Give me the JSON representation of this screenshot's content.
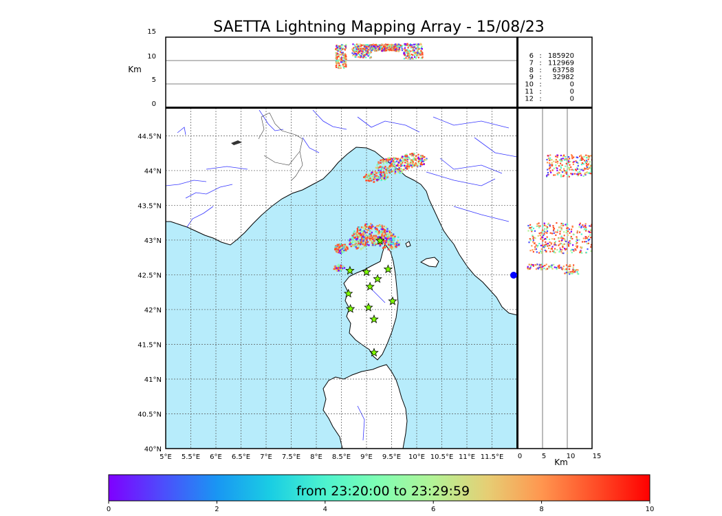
{
  "title": "SAETTA Lightning Mapping Array - 15/08/23",
  "top_panel": {
    "ylabel": "Km",
    "yticks": [
      "0",
      "5",
      "10",
      "15"
    ]
  },
  "side_panel": {
    "xlabel": "Km",
    "xticks": [
      "0",
      "5",
      "10",
      "15"
    ]
  },
  "map": {
    "lat_labels": [
      "40°N",
      "40.5°N",
      "41°N",
      "41.5°N",
      "42°N",
      "42.5°N",
      "43°N",
      "43.5°N",
      "44°N",
      "44.5°N"
    ],
    "lon_labels": [
      "5°E",
      "5.5°E",
      "6°E",
      "6.5°E",
      "7°E",
      "7.5°E",
      "8°E",
      "8.5°E",
      "9°E",
      "9.5°E",
      "10°E",
      "10.5°E",
      "11°E",
      "11.5°E"
    ],
    "sea_color": "#b7ecfb",
    "land_color": "#ffffff",
    "river_color": "#3333ff",
    "station_color": "#7fff00",
    "stations": [
      {
        "lon": 9.27,
        "lat": 42.99
      },
      {
        "lon": 8.67,
        "lat": 42.56
      },
      {
        "lon": 9.0,
        "lat": 42.54
      },
      {
        "lon": 9.43,
        "lat": 42.58
      },
      {
        "lon": 9.22,
        "lat": 42.44
      },
      {
        "lon": 9.07,
        "lat": 42.33
      },
      {
        "lon": 8.64,
        "lat": 42.23
      },
      {
        "lon": 9.52,
        "lat": 42.12
      },
      {
        "lon": 8.68,
        "lat": 42.01
      },
      {
        "lon": 9.04,
        "lat": 42.03
      },
      {
        "lon": 9.15,
        "lat": 41.86
      },
      {
        "lon": 9.15,
        "lat": 41.38
      }
    ]
  },
  "legend": {
    "rows": [
      {
        "stations": "6",
        "sep": ":",
        "count": "185920",
        "color": "#000000"
      },
      {
        "stations": "7",
        "sep": ":",
        "count": "112969",
        "color": "#ff0000"
      },
      {
        "stations": "8",
        "sep": ":",
        "count": "63758",
        "color": "#000000"
      },
      {
        "stations": "9",
        "sep": ":",
        "count": "32982",
        "color": "#000000"
      },
      {
        "stations": "10",
        "sep": ":",
        "count": "0",
        "color": "#000000"
      },
      {
        "stations": "11",
        "sep": ":",
        "count": "0",
        "color": "#000000"
      },
      {
        "stations": "12",
        "sep": ":",
        "count": "0",
        "color": "#000000"
      }
    ]
  },
  "colorbar": {
    "label": "from 23:20:00 to 23:29:59",
    "ticks": [
      "0",
      "2",
      "4",
      "6",
      "8",
      "10"
    ]
  }
}
